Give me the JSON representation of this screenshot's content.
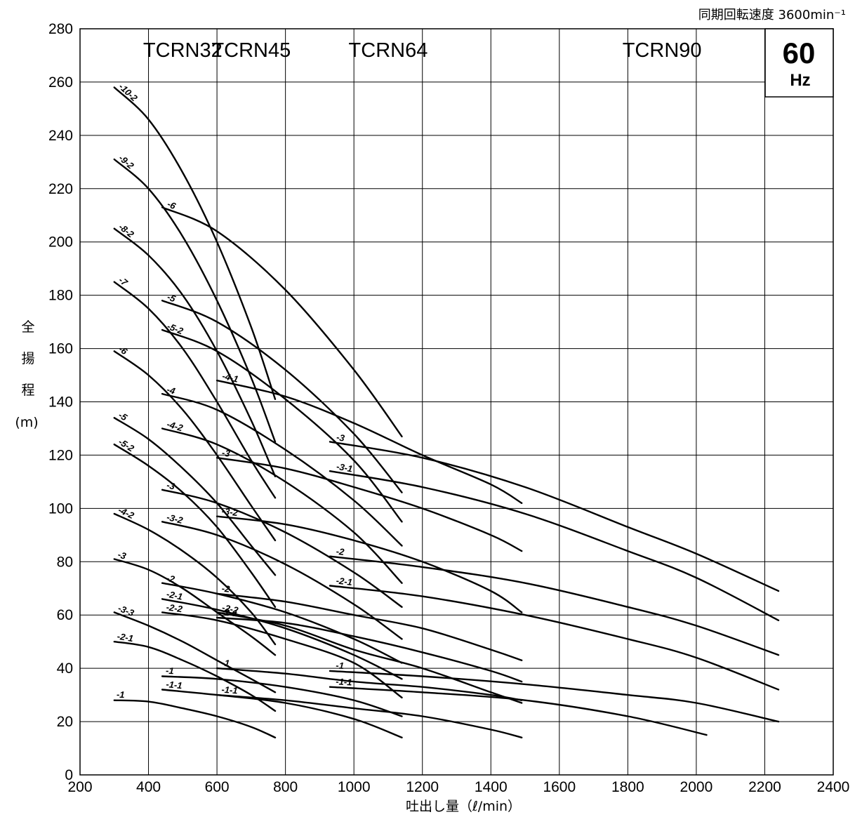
{
  "chart_data": {
    "type": "line",
    "title": "",
    "speed_note": "同期回転速度 3600min⁻¹",
    "frequency_badge": {
      "value": "60",
      "unit": "Hz"
    },
    "xlabel": "吐出し量（ℓ/min）",
    "ylabel_chars": [
      "全",
      "揚",
      "程",
      "(m)"
    ],
    "xlim": [
      200,
      2400
    ],
    "ylim": [
      0,
      280
    ],
    "x_ticks": [
      200,
      400,
      600,
      800,
      1000,
      1200,
      1400,
      1600,
      1800,
      2000,
      2200,
      2400
    ],
    "y_ticks": [
      0,
      20,
      40,
      60,
      80,
      100,
      120,
      140,
      160,
      180,
      200,
      220,
      240,
      260,
      280
    ],
    "grid": true,
    "groups": [
      "TCRN32",
      "TCRN45",
      "TCRN64",
      "TCRN90"
    ],
    "series": [
      {
        "group": "TCRN32",
        "name": "-10-2",
        "x": [
          300,
          400,
          500,
          600,
          700,
          770
        ],
        "y": [
          258,
          246,
          226,
          200,
          168,
          141
        ]
      },
      {
        "group": "TCRN32",
        "name": "-9-2",
        "x": [
          300,
          400,
          500,
          600,
          700,
          770
        ],
        "y": [
          231,
          220,
          202,
          178,
          149,
          125
        ]
      },
      {
        "group": "TCRN32",
        "name": "-8-2",
        "x": [
          300,
          400,
          500,
          600,
          700,
          770
        ],
        "y": [
          205,
          195,
          180,
          159,
          133,
          112
        ]
      },
      {
        "group": "TCRN32",
        "name": "-7",
        "x": [
          300,
          400,
          500,
          600,
          700,
          770
        ],
        "y": [
          185,
          175,
          160,
          140,
          118,
          104
        ]
      },
      {
        "group": "TCRN32",
        "name": "-6",
        "x": [
          300,
          400,
          500,
          600,
          700,
          770
        ],
        "y": [
          159,
          150,
          137,
          120,
          101,
          88
        ]
      },
      {
        "group": "TCRN32",
        "name": "-5",
        "x": [
          300,
          400,
          500,
          600,
          700,
          770
        ],
        "y": [
          134,
          126,
          115,
          102,
          86,
          75
        ]
      },
      {
        "group": "TCRN32",
        "name": "-5-2",
        "x": [
          300,
          400,
          500,
          600,
          700,
          770
        ],
        "y": [
          124,
          116,
          106,
          93,
          76,
          63
        ]
      },
      {
        "group": "TCRN32",
        "name": "-4-2",
        "x": [
          300,
          400,
          500,
          600,
          700,
          770
        ],
        "y": [
          98,
          92,
          84,
          74,
          61,
          49
        ]
      },
      {
        "group": "TCRN32",
        "name": "-3",
        "x": [
          300,
          400,
          500,
          600,
          700,
          770
        ],
        "y": [
          81,
          77,
          70,
          61,
          52,
          45
        ]
      },
      {
        "group": "TCRN32",
        "name": "-3-3",
        "x": [
          300,
          400,
          500,
          600,
          700,
          770
        ],
        "y": [
          61,
          56,
          50,
          43,
          36,
          31
        ]
      },
      {
        "group": "TCRN32",
        "name": "-2-1",
        "x": [
          300,
          400,
          500,
          600,
          700,
          770
        ],
        "y": [
          50,
          48,
          43,
          37,
          30,
          24
        ]
      },
      {
        "group": "TCRN32",
        "name": "-1",
        "x": [
          300,
          400,
          500,
          600,
          700,
          770
        ],
        "y": [
          28,
          27.5,
          25,
          22,
          18,
          14
        ]
      },
      {
        "group": "TCRN45",
        "name": "-6",
        "x": [
          440,
          600,
          800,
          1000,
          1140
        ],
        "y": [
          213,
          204,
          182,
          152,
          127
        ]
      },
      {
        "group": "TCRN45",
        "name": "-5",
        "x": [
          440,
          600,
          800,
          1000,
          1140
        ],
        "y": [
          178,
          170,
          152,
          128,
          106
        ]
      },
      {
        "group": "TCRN45",
        "name": "-5-2",
        "x": [
          440,
          600,
          800,
          1000,
          1140
        ],
        "y": [
          167,
          159,
          141,
          118,
          95
        ]
      },
      {
        "group": "TCRN45",
        "name": "-4",
        "x": [
          440,
          600,
          800,
          1000,
          1140
        ],
        "y": [
          143,
          137,
          122,
          103,
          86
        ]
      },
      {
        "group": "TCRN45",
        "name": "-4-2",
        "x": [
          440,
          600,
          800,
          1000,
          1140
        ],
        "y": [
          130,
          124,
          110,
          91,
          72
        ]
      },
      {
        "group": "TCRN45",
        "name": "-3",
        "x": [
          440,
          600,
          800,
          1000,
          1140
        ],
        "y": [
          107,
          102,
          91,
          76,
          63
        ]
      },
      {
        "group": "TCRN45",
        "name": "-3-2",
        "x": [
          440,
          600,
          800,
          1000,
          1140
        ],
        "y": [
          95,
          90,
          79,
          64,
          51
        ]
      },
      {
        "group": "TCRN45",
        "name": "-2",
        "x": [
          440,
          600,
          800,
          1000,
          1140
        ],
        "y": [
          72,
          68,
          61,
          51,
          42
        ]
      },
      {
        "group": "TCRN45",
        "name": "-2-1",
        "x": [
          440,
          600,
          800,
          1000,
          1140
        ],
        "y": [
          66,
          62,
          55,
          45,
          36
        ]
      },
      {
        "group": "TCRN45",
        "name": "-2-2",
        "x": [
          440,
          600,
          800,
          1000,
          1140
        ],
        "y": [
          61,
          58,
          51,
          42,
          29
        ]
      },
      {
        "group": "TCRN45",
        "name": "-1",
        "x": [
          440,
          600,
          800,
          1000,
          1140
        ],
        "y": [
          37,
          36,
          33,
          28,
          22
        ]
      },
      {
        "group": "TCRN45",
        "name": "-1-1",
        "x": [
          440,
          600,
          800,
          1000,
          1140
        ],
        "y": [
          32,
          30,
          27,
          21,
          14
        ]
      },
      {
        "group": "TCRN64",
        "name": "-4-1",
        "x": [
          600,
          800,
          1000,
          1200,
          1400,
          1490
        ],
        "y": [
          148,
          142,
          132,
          120,
          109,
          102
        ]
      },
      {
        "group": "TCRN64",
        "name": "-3",
        "x": [
          600,
          800,
          1000,
          1200,
          1400,
          1490
        ],
        "y": [
          119,
          115,
          108,
          100,
          90,
          84
        ]
      },
      {
        "group": "TCRN64",
        "name": "-3-2",
        "x": [
          600,
          800,
          1000,
          1200,
          1400,
          1490
        ],
        "y": [
          97,
          94,
          88,
          80,
          69,
          61
        ]
      },
      {
        "group": "TCRN64",
        "name": "-2",
        "x": [
          600,
          800,
          1000,
          1200,
          1400,
          1490
        ],
        "y": [
          68,
          65,
          60,
          55,
          47,
          43
        ]
      },
      {
        "group": "TCRN64",
        "name": "-2-1",
        "x": [
          600,
          800,
          1000,
          1200,
          1400,
          1490
        ],
        "y": [
          59,
          57,
          52,
          46,
          39,
          35
        ]
      },
      {
        "group": "TCRN64",
        "name": "-2-2",
        "x": [
          600,
          800,
          1000,
          1200,
          1400,
          1490
        ],
        "y": [
          61,
          56,
          47,
          40,
          31,
          27
        ]
      },
      {
        "group": "TCRN64",
        "name": "-1",
        "x": [
          600,
          800,
          1000,
          1200,
          1400,
          1490
        ],
        "y": [
          40,
          38,
          35,
          33,
          30,
          28
        ]
      },
      {
        "group": "TCRN64",
        "name": "-1-1",
        "x": [
          600,
          800,
          1000,
          1200,
          1400,
          1490
        ],
        "y": [
          30,
          28,
          25,
          22,
          17,
          14
        ]
      },
      {
        "group": "TCRN90",
        "name": "-3",
        "x": [
          930,
          1200,
          1500,
          1800,
          2000,
          2240
        ],
        "y": [
          125,
          119,
          108,
          93,
          83,
          69
        ]
      },
      {
        "group": "TCRN90",
        "name": "-3-1",
        "x": [
          930,
          1200,
          1500,
          1800,
          2000,
          2240
        ],
        "y": [
          114,
          108,
          98,
          84,
          74,
          58
        ]
      },
      {
        "group": "TCRN90",
        "name": "-2",
        "x": [
          930,
          1200,
          1500,
          1800,
          2000,
          2240
        ],
        "y": [
          82,
          78,
          72,
          63,
          56,
          45
        ]
      },
      {
        "group": "TCRN90",
        "name": "-2-1",
        "x": [
          930,
          1200,
          1500,
          1800,
          2000,
          2240
        ],
        "y": [
          71,
          67,
          60,
          51,
          44,
          32
        ]
      },
      {
        "group": "TCRN90",
        "name": "-1",
        "x": [
          930,
          1200,
          1500,
          1800,
          2000,
          2240
        ],
        "y": [
          39,
          37,
          34,
          30,
          27,
          20
        ]
      },
      {
        "group": "TCRN90",
        "name": "-1-1",
        "x": [
          930,
          1200,
          1500,
          1800,
          2030
        ],
        "y": [
          33,
          31,
          28,
          22,
          15
        ]
      }
    ]
  }
}
